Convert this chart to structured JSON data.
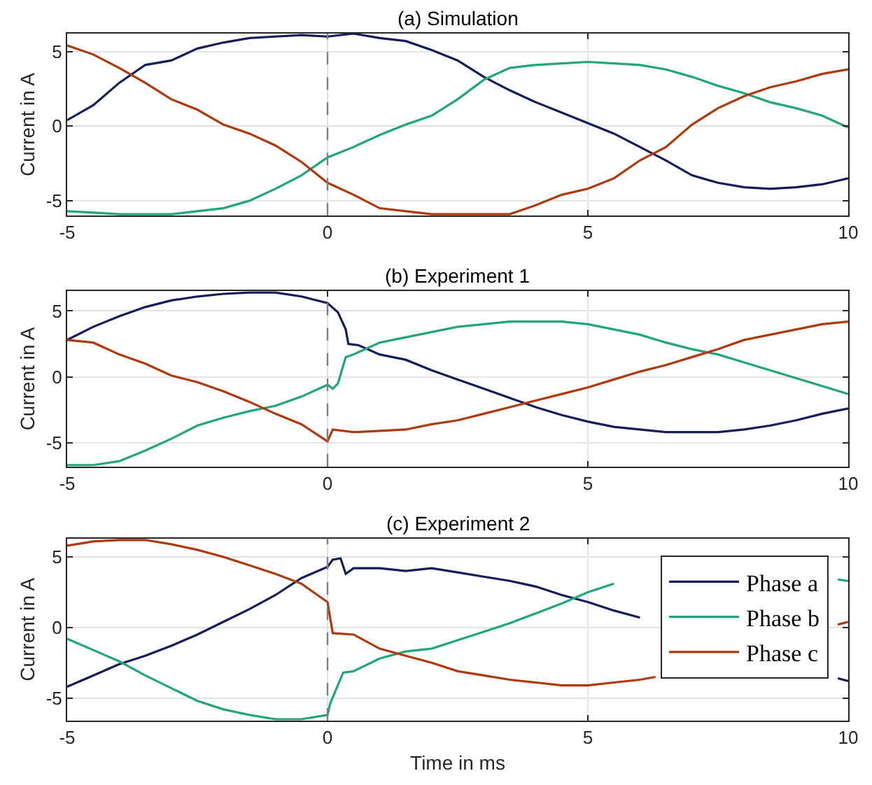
{
  "chart_data": [
    {
      "type": "line",
      "title": "(a) Simulation",
      "ylabel": "Current in A",
      "xlim": [
        -5,
        10
      ],
      "xticks": [
        -5,
        0,
        5,
        10
      ],
      "ylim": [
        -6,
        6.2
      ],
      "yticks": [
        -5,
        0,
        5
      ],
      "grid": true,
      "legend": false,
      "tick_labels": "xy",
      "ref_lines": [
        {
          "axis": "x",
          "value": 0,
          "color": "#7f7f7f",
          "line_style": "dashed"
        }
      ],
      "series": [
        {
          "color": "#141c5a",
          "x": [
            -5,
            -4.5,
            -4,
            -3.5,
            -3,
            -2.5,
            -2,
            -1.5,
            -1,
            -0.5,
            0,
            0.5,
            1,
            1.5,
            2,
            2.5,
            3,
            3.5,
            4,
            4.5,
            5,
            5.5,
            6,
            6.5,
            7,
            7.5,
            8,
            8.5,
            9,
            9.5,
            10
          ],
          "values": [
            0.4,
            1.4,
            2.9,
            4.1,
            4.4,
            5.2,
            5.6,
            5.9,
            6.0,
            6.1,
            6.0,
            6.2,
            5.9,
            5.7,
            5.1,
            4.4,
            3.3,
            2.4,
            1.6,
            0.9,
            0.2,
            -0.5,
            -1.4,
            -2.3,
            -3.3,
            -3.8,
            -4.1,
            -4.2,
            -4.1,
            -3.9,
            -3.5
          ]
        },
        {
          "color": "#1fa77a",
          "x": [
            -5,
            -4.5,
            -4,
            -3.5,
            -3,
            -2.5,
            -2,
            -1.5,
            -1,
            -0.5,
            0,
            0.5,
            1,
            1.5,
            2,
            2.5,
            3,
            3.5,
            4,
            4.5,
            5,
            5.5,
            6,
            6.5,
            7,
            7.5,
            8,
            8.5,
            9,
            9.5,
            10
          ],
          "values": [
            -5.7,
            -5.8,
            -5.9,
            -5.9,
            -5.9,
            -5.7,
            -5.5,
            -5.0,
            -4.2,
            -3.3,
            -2.1,
            -1.4,
            -0.6,
            0.1,
            0.7,
            1.8,
            3.1,
            3.9,
            4.1,
            4.2,
            4.3,
            4.2,
            4.1,
            3.8,
            3.3,
            2.7,
            2.2,
            1.6,
            1.2,
            0.7,
            -0.1
          ]
        },
        {
          "color": "#b0390c",
          "x": [
            -5,
            -4.5,
            -4,
            -3.5,
            -3,
            -2.5,
            -2,
            -1.5,
            -1,
            -0.5,
            0,
            0.5,
            1,
            1.5,
            2,
            2.5,
            3,
            3.5,
            4,
            4.5,
            5,
            5.5,
            6,
            6.5,
            7,
            7.5,
            8,
            8.5,
            9,
            9.5,
            10
          ],
          "values": [
            5.4,
            4.8,
            3.9,
            2.9,
            1.8,
            1.1,
            0.1,
            -0.5,
            -1.3,
            -2.4,
            -3.8,
            -4.6,
            -5.5,
            -5.7,
            -5.9,
            -5.9,
            -5.9,
            -5.9,
            -5.3,
            -4.6,
            -4.2,
            -3.5,
            -2.3,
            -1.4,
            0.1,
            1.2,
            2.0,
            2.6,
            3.0,
            3.5,
            3.8
          ]
        }
      ]
    },
    {
      "type": "line",
      "title": "(b) Experiment 1",
      "ylabel": "Current in A",
      "xlim": [
        -5,
        10
      ],
      "xticks": [
        -5,
        0,
        5,
        10
      ],
      "ylim": [
        -6.8,
        6.5
      ],
      "yticks": [
        -5,
        0,
        5
      ],
      "grid": true,
      "legend": false,
      "tick_labels": "xy",
      "ref_lines": [
        {
          "axis": "x",
          "value": 0,
          "color": "#7f7f7f",
          "line_style": "dashed"
        }
      ],
      "series": [
        {
          "color": "#141c5a",
          "x": [
            -5,
            -4.5,
            -4,
            -3.5,
            -3,
            -2.5,
            -2,
            -1.5,
            -1,
            -0.5,
            0,
            0.2,
            0.35,
            0.4,
            0.6,
            1,
            1.5,
            2,
            2.5,
            3,
            3.5,
            4,
            4.5,
            5,
            5.5,
            6,
            6.5,
            7,
            7.5,
            8,
            8.5,
            9,
            9.5,
            10
          ],
          "values": [
            2.8,
            3.8,
            4.6,
            5.3,
            5.8,
            6.1,
            6.3,
            6.4,
            6.4,
            6.1,
            5.6,
            4.9,
            3.6,
            2.5,
            2.4,
            1.7,
            1.3,
            0.5,
            -0.2,
            -0.9,
            -1.6,
            -2.3,
            -2.9,
            -3.4,
            -3.8,
            -4.0,
            -4.2,
            -4.2,
            -4.2,
            -4.0,
            -3.7,
            -3.3,
            -2.8,
            -2.4
          ]
        },
        {
          "color": "#1fa77a",
          "x": [
            -5,
            -4.5,
            -4,
            -3.5,
            -3,
            -2.5,
            -2,
            -1.5,
            -1,
            -0.5,
            0,
            0.1,
            0.2,
            0.35,
            0.5,
            1,
            1.5,
            2,
            2.5,
            3,
            3.5,
            4,
            4.5,
            5,
            5.5,
            6,
            6.5,
            7,
            7.5,
            8,
            8.5,
            9,
            9.5,
            10
          ],
          "values": [
            -6.7,
            -6.7,
            -6.4,
            -5.6,
            -4.7,
            -3.7,
            -3.1,
            -2.6,
            -2.2,
            -1.5,
            -0.6,
            -0.9,
            -0.5,
            1.5,
            1.7,
            2.6,
            3.0,
            3.4,
            3.8,
            4.0,
            4.2,
            4.2,
            4.2,
            4.0,
            3.6,
            3.2,
            2.6,
            2.1,
            1.7,
            1.1,
            0.5,
            -0.1,
            -0.7,
            -1.3
          ]
        },
        {
          "color": "#b0390c",
          "x": [
            -5,
            -4.5,
            -4,
            -3.5,
            -3,
            -2.5,
            -2,
            -1.5,
            -1,
            -0.5,
            0,
            0.1,
            0.5,
            1,
            1.5,
            2,
            2.5,
            3,
            3.5,
            4,
            4.5,
            5,
            5.5,
            6,
            6.5,
            7,
            7.5,
            8,
            8.5,
            9,
            9.5,
            10
          ],
          "values": [
            2.8,
            2.6,
            1.7,
            1.0,
            0.1,
            -0.4,
            -1.1,
            -1.9,
            -2.8,
            -3.6,
            -4.9,
            -4.0,
            -4.2,
            -4.1,
            -4.0,
            -3.6,
            -3.3,
            -2.8,
            -2.3,
            -1.8,
            -1.3,
            -0.8,
            -0.2,
            0.4,
            0.9,
            1.5,
            2.1,
            2.8,
            3.2,
            3.6,
            4.0,
            4.2
          ]
        }
      ]
    },
    {
      "type": "line",
      "title": "(c) Experiment 2",
      "xlabel": "Time in ms",
      "ylabel": "Current in A",
      "xlim": [
        -5,
        10
      ],
      "xticks": [
        -5,
        0,
        5,
        10
      ],
      "ylim": [
        -6.6,
        6.3
      ],
      "yticks": [
        -5,
        0,
        5
      ],
      "grid": true,
      "legend": "right",
      "ref_lines": [
        {
          "axis": "x",
          "value": 0,
          "color": "#7f7f7f",
          "line_style": "dashed"
        }
      ],
      "series": [
        {
          "name": "Phase a",
          "color": "#141c5a",
          "x": [
            -5,
            -4.5,
            -4,
            -3.5,
            -3,
            -2.5,
            -2,
            -1.5,
            -1,
            -0.5,
            0,
            0.1,
            0.25,
            0.35,
            0.5,
            1,
            1.5,
            2,
            2.5,
            3,
            3.5,
            4,
            4.5,
            5,
            5.5,
            6,
            6.5,
            7,
            7.5,
            8,
            8.5,
            9,
            9.5,
            9.8,
            10
          ],
          "values": [
            -4.2,
            -3.4,
            -2.6,
            -2.0,
            -1.3,
            -0.5,
            0.4,
            1.3,
            2.3,
            3.5,
            4.3,
            4.8,
            4.9,
            3.8,
            4.2,
            4.2,
            4.0,
            4.2,
            3.9,
            3.6,
            3.3,
            2.9,
            2.3,
            1.8,
            1.2,
            0.7,
            null,
            null,
            null,
            null,
            null,
            null,
            null,
            -3.6,
            -3.8
          ]
        },
        {
          "name": "Phase b",
          "color": "#1fa77a",
          "x": [
            -5,
            -4.5,
            -4,
            -3.5,
            -3,
            -2.5,
            -2,
            -1.5,
            -1,
            -0.5,
            0,
            0.05,
            0.3,
            0.5,
            1,
            1.5,
            2,
            2.5,
            3,
            3.5,
            4,
            4.5,
            5,
            5.5,
            6,
            6.5,
            7,
            7.5,
            8,
            8.5,
            9,
            9.5,
            9.8,
            10
          ],
          "values": [
            -0.8,
            -1.6,
            -2.4,
            -3.4,
            -4.3,
            -5.2,
            -5.8,
            -6.2,
            -6.5,
            -6.5,
            -6.2,
            -5.4,
            -3.2,
            -3.1,
            -2.2,
            -1.7,
            -1.5,
            -0.9,
            -0.3,
            0.3,
            1.0,
            1.7,
            2.5,
            3.1,
            null,
            null,
            null,
            null,
            null,
            null,
            null,
            null,
            3.4,
            3.3
          ]
        },
        {
          "name": "Phase c",
          "color": "#b0390c",
          "x": [
            -5,
            -4.5,
            -4,
            -3.5,
            -3,
            -2.5,
            -2,
            -1.5,
            -1,
            -0.5,
            0,
            0.05,
            0.1,
            0.5,
            1,
            1.5,
            2,
            2.5,
            3,
            3.5,
            4,
            4.5,
            5,
            5.5,
            6,
            6.3,
            7,
            7.5,
            8,
            8.5,
            9,
            9.5,
            9.8,
            10
          ],
          "values": [
            5.8,
            6.1,
            6.2,
            6.2,
            5.9,
            5.5,
            5.0,
            4.4,
            3.8,
            3.1,
            1.8,
            0.7,
            -0.4,
            -0.5,
            -1.5,
            -2.0,
            -2.5,
            -3.1,
            -3.4,
            -3.7,
            -3.9,
            -4.1,
            -4.1,
            -3.9,
            -3.7,
            -3.5,
            null,
            null,
            null,
            null,
            null,
            null,
            0.2,
            0.4
          ]
        }
      ]
    }
  ]
}
